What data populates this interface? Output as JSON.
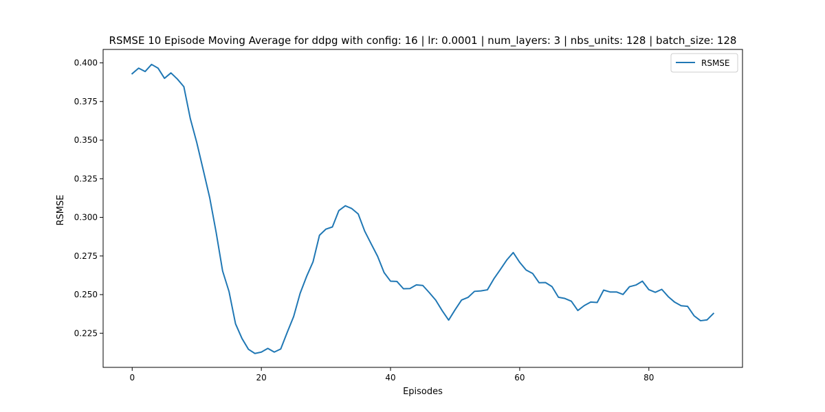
{
  "chart_data": {
    "type": "line",
    "title": "RSMSE 10 Episode Moving Average for ddpg with config: 16 | lr: 0.0001 | num_layers: 3 | nbs_units: 128 | batch_size: 128",
    "xlabel": "Episodes",
    "ylabel": "RSMSE",
    "xlim": [
      -4.5,
      94.5
    ],
    "ylim": [
      0.2029,
      0.4087
    ],
    "xticks": [
      0,
      20,
      40,
      60,
      80
    ],
    "xtick_labels": [
      "0",
      "20",
      "40",
      "60",
      "80"
    ],
    "yticks": [
      0.225,
      0.25,
      0.275,
      0.3,
      0.325,
      0.35,
      0.375,
      0.4
    ],
    "ytick_labels": [
      "0.225",
      "0.250",
      "0.275",
      "0.300",
      "0.325",
      "0.350",
      "0.375",
      "0.400"
    ],
    "grid": false,
    "legend_position": "top-right",
    "series": [
      {
        "name": "RSMSE",
        "color": "#1f77b4",
        "x": [
          0,
          1,
          2,
          3,
          4,
          5,
          6,
          7,
          8,
          9,
          10,
          11,
          12,
          13,
          14,
          15,
          16,
          17,
          18,
          19,
          20,
          21,
          22,
          23,
          24,
          25,
          26,
          27,
          28,
          29,
          30,
          31,
          32,
          33,
          34,
          35,
          36,
          37,
          38,
          39,
          40,
          41,
          42,
          43,
          44,
          45,
          46,
          47,
          48,
          49,
          50,
          51,
          52,
          53,
          54,
          55,
          56,
          57,
          58,
          59,
          60,
          61,
          62,
          63,
          64,
          65,
          66,
          67,
          68,
          69,
          70,
          71,
          72,
          73,
          74,
          75,
          76,
          77,
          78,
          79,
          80,
          81,
          82,
          83,
          84,
          85,
          86,
          87,
          88,
          89,
          90
        ],
        "y": [
          0.393,
          0.3966,
          0.3944,
          0.399,
          0.3966,
          0.39,
          0.3935,
          0.3895,
          0.3846,
          0.3639,
          0.3484,
          0.3307,
          0.3128,
          0.2903,
          0.2653,
          0.2519,
          0.2311,
          0.2216,
          0.2146,
          0.2119,
          0.2128,
          0.2152,
          0.2128,
          0.2148,
          0.2255,
          0.2358,
          0.2508,
          0.2617,
          0.2712,
          0.2884,
          0.2924,
          0.2938,
          0.3044,
          0.3075,
          0.3057,
          0.3022,
          0.2911,
          0.2829,
          0.2748,
          0.2643,
          0.2587,
          0.2585,
          0.2538,
          0.2539,
          0.2563,
          0.2559,
          0.2513,
          0.2464,
          0.2396,
          0.2335,
          0.2402,
          0.2465,
          0.2482,
          0.2521,
          0.2524,
          0.2531,
          0.2602,
          0.2662,
          0.2724,
          0.2772,
          0.2709,
          0.2659,
          0.2637,
          0.2577,
          0.2578,
          0.2552,
          0.2483,
          0.2475,
          0.2457,
          0.2397,
          0.2429,
          0.2452,
          0.2449,
          0.2529,
          0.2517,
          0.2517,
          0.2501,
          0.2551,
          0.2562,
          0.2587,
          0.2532,
          0.2515,
          0.2534,
          0.2487,
          0.2451,
          0.2428,
          0.2424,
          0.2363,
          0.2331,
          0.2336,
          0.2378
        ]
      }
    ]
  }
}
